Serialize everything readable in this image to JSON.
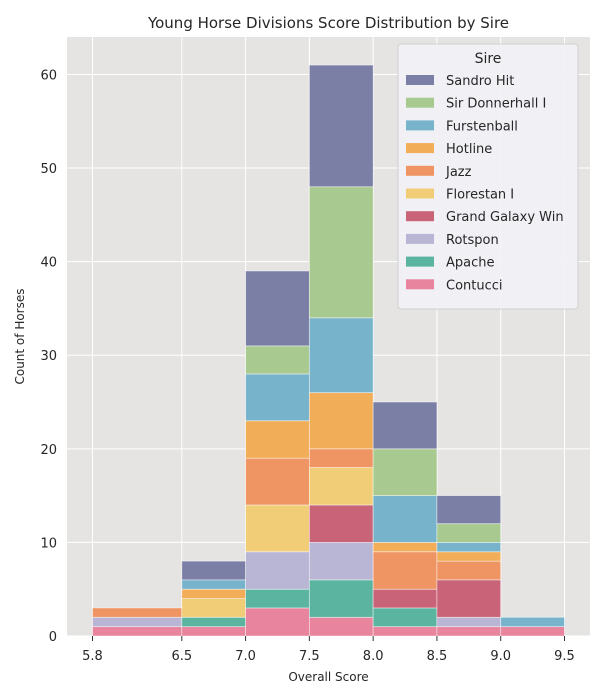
{
  "chart_data": {
    "type": "bar",
    "stacked": true,
    "title": "Young Horse Divisions Score Distribution by Sire",
    "xlabel": "Overall Score",
    "ylabel": "Count of Horses",
    "bins": [
      [
        5.8,
        6.5
      ],
      [
        6.5,
        7.0
      ],
      [
        7.0,
        7.5
      ],
      [
        7.5,
        8.0
      ],
      [
        8.0,
        8.5
      ],
      [
        8.5,
        9.0
      ],
      [
        9.0,
        9.5
      ]
    ],
    "xticks": [
      "5.8",
      "6.5",
      "7.0",
      "7.5",
      "8.0",
      "8.5",
      "9.0",
      "9.5"
    ],
    "yticks": [
      0,
      10,
      20,
      30,
      40,
      50,
      60
    ],
    "ylim": [
      0,
      64
    ],
    "grid": true,
    "legend": {
      "title": "Sire",
      "placement": "top-right"
    },
    "series": [
      {
        "name": "Contucci",
        "color": "#e8849d",
        "values": [
          1,
          1,
          3,
          2,
          1,
          1,
          1
        ]
      },
      {
        "name": "Apache",
        "color": "#5ab4a0",
        "values": [
          0,
          1,
          2,
          4,
          2,
          0,
          0
        ]
      },
      {
        "name": "Rotspon",
        "color": "#b9b5d5",
        "values": [
          1,
          0,
          4,
          4,
          0,
          1,
          0
        ]
      },
      {
        "name": "Grand Galaxy Win",
        "color": "#c96378",
        "values": [
          0,
          0,
          0,
          4,
          2,
          4,
          0
        ]
      },
      {
        "name": "Florestan I",
        "color": "#f1cd78",
        "values": [
          0,
          2,
          5,
          4,
          0,
          0,
          0
        ]
      },
      {
        "name": "Jazz",
        "color": "#ee9563",
        "values": [
          1,
          0,
          5,
          2,
          4,
          2,
          0
        ]
      },
      {
        "name": "Hotline",
        "color": "#f1ad58",
        "values": [
          0,
          1,
          4,
          6,
          1,
          1,
          0
        ]
      },
      {
        "name": "Furstenball",
        "color": "#78b3cc",
        "values": [
          0,
          1,
          5,
          8,
          5,
          1,
          1
        ]
      },
      {
        "name": "Sir Donnerhall I",
        "color": "#a8c98f",
        "values": [
          0,
          0,
          3,
          14,
          5,
          2,
          0
        ]
      },
      {
        "name": "Sandro Hit",
        "color": "#7b7fa5",
        "values": [
          0,
          2,
          8,
          13,
          5,
          3,
          0
        ]
      }
    ]
  }
}
